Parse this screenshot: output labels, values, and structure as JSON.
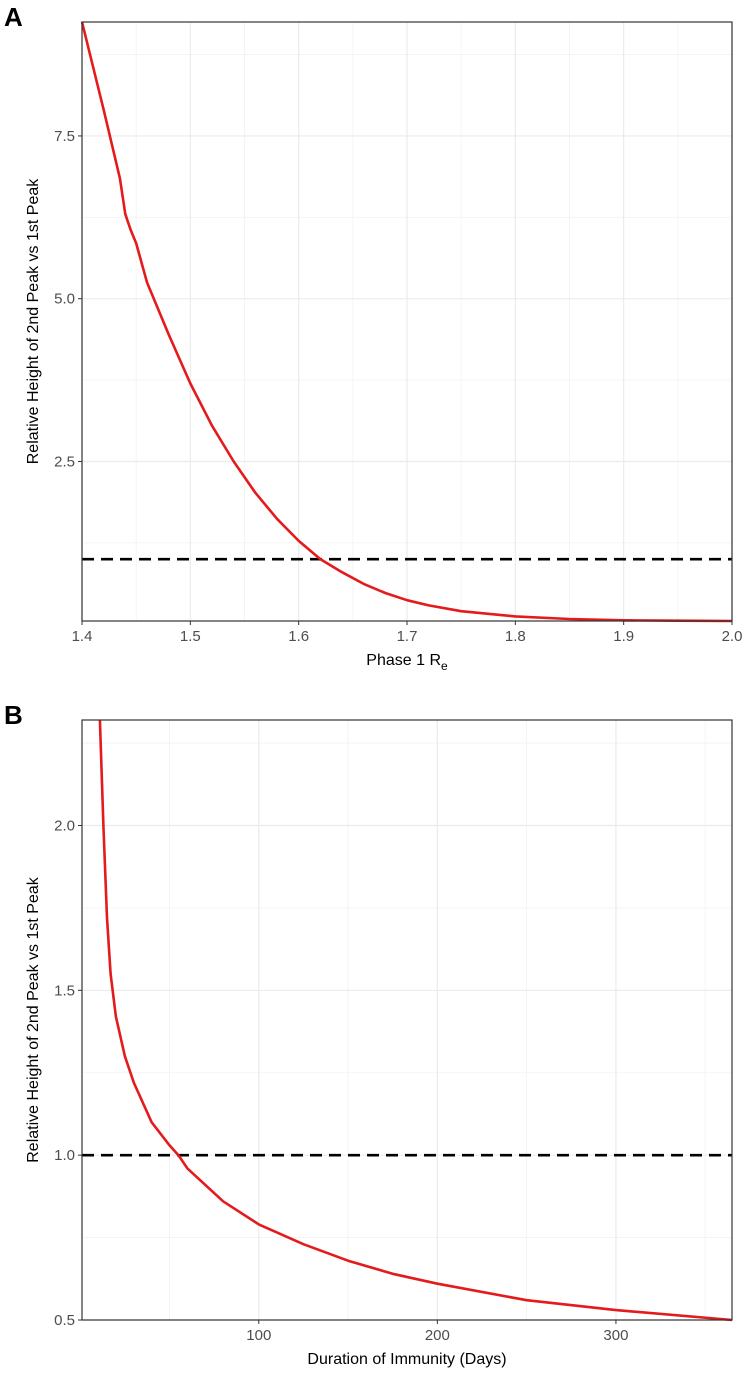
{
  "panels": {
    "a": {
      "label": "A"
    },
    "b": {
      "label": "B"
    }
  },
  "chart_data": [
    {
      "type": "line",
      "panel": "A",
      "xlabel_main": "Phase 1 R",
      "xlabel_sub": "e",
      "ylabel": "Relative Height of 2nd Peak vs 1st Peak",
      "xlim": [
        1.4,
        2.0
      ],
      "ylim": [
        0.05,
        9.25
      ],
      "x_ticks": [
        1.4,
        1.5,
        1.6,
        1.7,
        1.8,
        1.9,
        2.0
      ],
      "x_tick_labels": [
        "1.4",
        "1.5",
        "1.6",
        "1.7",
        "1.8",
        "1.9",
        "2.0"
      ],
      "y_ticks": [
        2.5,
        5.0,
        7.5
      ],
      "y_tick_labels": [
        "2.5",
        "5.0",
        "7.5"
      ],
      "grid": true,
      "reference_line": {
        "y": 1.0,
        "style": "dashed",
        "color": "#000000"
      },
      "series": [
        {
          "color": "#e41a1c",
          "x": [
            1.4,
            1.42,
            1.435,
            1.44,
            1.445,
            1.45,
            1.46,
            1.48,
            1.5,
            1.52,
            1.54,
            1.56,
            1.58,
            1.6,
            1.62,
            1.64,
            1.66,
            1.68,
            1.7,
            1.72,
            1.75,
            1.8,
            1.85,
            1.9,
            1.95,
            2.0
          ],
          "y": [
            9.25,
            7.9,
            6.85,
            6.3,
            6.05,
            5.85,
            5.25,
            4.45,
            3.7,
            3.05,
            2.5,
            2.02,
            1.62,
            1.28,
            1.0,
            0.8,
            0.62,
            0.48,
            0.37,
            0.29,
            0.2,
            0.12,
            0.08,
            0.06,
            0.055,
            0.05
          ]
        }
      ]
    },
    {
      "type": "line",
      "panel": "B",
      "xlabel": "Duration of Immunity (Days)",
      "ylabel": "Relative Height of 2nd Peak vs 1st Peak",
      "xlim": [
        1,
        365
      ],
      "ylim": [
        0.5,
        2.32
      ],
      "x_ticks": [
        100,
        200,
        300
      ],
      "x_tick_labels": [
        "100",
        "200",
        "300"
      ],
      "y_ticks": [
        0.5,
        1.0,
        1.5,
        2.0
      ],
      "y_tick_labels": [
        "0.5",
        "1.0",
        "1.5",
        "2.0"
      ],
      "grid": true,
      "reference_line": {
        "y": 1.0,
        "style": "dashed",
        "color": "#000000"
      },
      "series": [
        {
          "color": "#e41a1c",
          "x": [
            11,
            13,
            15,
            17,
            20,
            25,
            30,
            40,
            50,
            55,
            60,
            80,
            100,
            125,
            150,
            175,
            200,
            250,
            300,
            365
          ],
          "y": [
            2.32,
            2.0,
            1.72,
            1.55,
            1.42,
            1.3,
            1.22,
            1.1,
            1.03,
            1.0,
            0.96,
            0.86,
            0.79,
            0.73,
            0.68,
            0.64,
            0.61,
            0.56,
            0.53,
            0.5
          ]
        }
      ]
    }
  ]
}
